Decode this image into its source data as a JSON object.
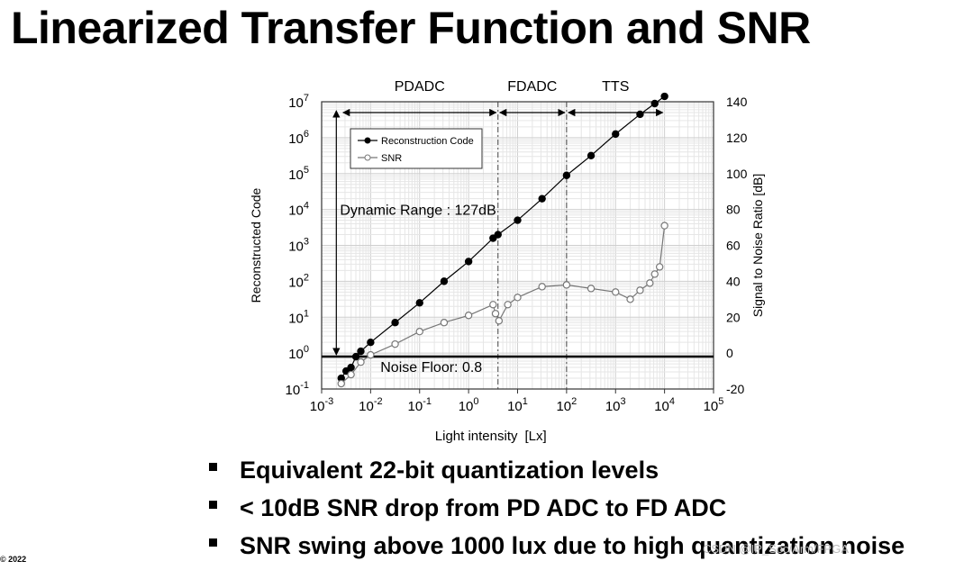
{
  "slide": {
    "title": "Linearized Transfer Function and SNR",
    "bullets": [
      "Equivalent 22-bit quantization levels",
      "< 10dB SNR drop from PD ADC to FD ADC",
      "SNR swing above 1000 lux due to high quantization noise"
    ],
    "copyright": "© 2022",
    "watermark": "CSDN @IP_Soc/Arm/FPGA"
  },
  "chart_data": {
    "type": "scatter",
    "xlabel": "Light intensity",
    "xunit": "[Lx]",
    "ylabel_left": "Reconstructed Code",
    "ylabel_right": "Signal to Noise Ratio [dB]",
    "x_scale": "log",
    "x_ticks": [
      -3,
      -2,
      -1,
      0,
      1,
      2,
      3,
      4,
      5
    ],
    "xlim_log10": [
      -3,
      5
    ],
    "ylim_left_log10": [
      -1,
      7
    ],
    "y_ticks_left": [
      -1,
      0,
      1,
      2,
      3,
      4,
      5,
      6,
      7
    ],
    "ylim_right": [
      -20,
      140
    ],
    "y_ticks_right": [
      "-20",
      "0",
      "20",
      "40",
      "60",
      "80",
      "100",
      "120",
      "140"
    ],
    "grid": true,
    "legend_position": "top-left",
    "regions": [
      {
        "label": "PDADC",
        "x_start_log10": -2.6,
        "x_end_log10": 0.6
      },
      {
        "label": "FDADC",
        "x_start_log10": 0.6,
        "x_end_log10": 2.0
      },
      {
        "label": "TTS",
        "x_start_log10": 2.0,
        "x_end_log10": 4.0
      }
    ],
    "annotations": {
      "dynamic_range": "Dynamic Range : 127dB",
      "noise_floor": "Noise Floor: 0.8",
      "noise_floor_value": 0.8
    },
    "series": [
      {
        "name": "Reconstruction Code",
        "axis": "left",
        "color": "#000000",
        "marker": "filled",
        "x_log10": [
          -2.6,
          -2.5,
          -2.4,
          -2.3,
          -2.2,
          -2.0,
          -1.5,
          -1.0,
          -0.5,
          0.0,
          0.5,
          0.6,
          1.0,
          1.5,
          2.0,
          2.5,
          3.0,
          3.5,
          3.8,
          4.0
        ],
        "y_log10": [
          -0.7,
          -0.5,
          -0.4,
          -0.1,
          0.05,
          0.3,
          0.85,
          1.4,
          2.0,
          2.55,
          3.2,
          3.3,
          3.7,
          4.3,
          4.95,
          5.5,
          6.1,
          6.65,
          6.95,
          7.15
        ]
      },
      {
        "name": "SNR",
        "axis": "right",
        "color": "#777777",
        "marker": "open",
        "x_log10": [
          -2.6,
          -2.4,
          -2.2,
          -2.0,
          -1.5,
          -1.0,
          -0.5,
          0.0,
          0.5,
          0.55,
          0.62,
          0.8,
          1.0,
          1.5,
          2.0,
          2.5,
          3.0,
          3.3,
          3.5,
          3.7,
          3.8,
          3.9,
          4.0
        ],
        "y": [
          -17,
          -12,
          -5,
          -1,
          5,
          12,
          17,
          21,
          27,
          22,
          18,
          27,
          31,
          37,
          38,
          36,
          34,
          30,
          35,
          39,
          44,
          48,
          71
        ]
      }
    ]
  }
}
